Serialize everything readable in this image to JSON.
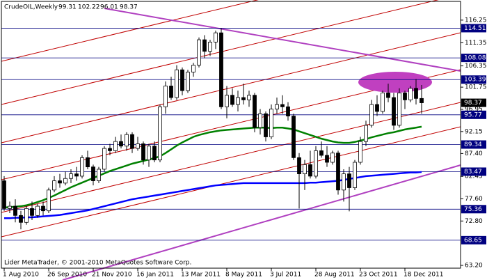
{
  "chart_data": {
    "type": "candlestick",
    "title": "CrudeOIL,Weekly",
    "footer": "Lider MetaTrader, © 2001-2010 MetaQuotes Software Corp.",
    "categories": [
      "1 Aug 2010",
      null,
      null,
      null,
      null,
      null,
      null,
      null,
      "26 Sep 2010",
      null,
      null,
      null,
      null,
      null,
      null,
      null,
      "21 Nov 2010",
      null,
      null,
      null,
      null,
      null,
      null,
      null,
      "16 Jan 2011",
      null,
      null,
      null,
      null,
      null,
      null,
      null,
      "13 Mar 2011",
      null,
      null,
      null,
      null,
      null,
      null,
      null,
      "8 May 2011",
      null,
      null,
      null,
      null,
      null,
      null,
      null,
      "3 Jul 2011",
      null,
      null,
      null,
      null,
      null,
      null,
      null,
      "28 Aug 2011",
      null,
      null,
      null,
      null,
      null,
      null,
      null,
      "23 Oct 2011",
      null,
      null,
      null,
      null,
      null,
      null,
      null,
      "18 Dec 2011",
      null,
      null,
      null
    ],
    "open": [
      81.5,
      75.5,
      76,
      74,
      72.5,
      75.5,
      74,
      76,
      75,
      79.5,
      81.5,
      81,
      82,
      83,
      82.5,
      86.5,
      84.5,
      81.5,
      84,
      88.5,
      88,
      90,
      89,
      91.5,
      88.5,
      89.5,
      86,
      89,
      86,
      97.5,
      102,
      99.5,
      105.5,
      101,
      105,
      106.5,
      112,
      109.5,
      111.5,
      113.5,
      97.5,
      100,
      98,
      99.5,
      99,
      100,
      93,
      96,
      91,
      97,
      98,
      97.5,
      95.5,
      86.5,
      83,
      85,
      82.5,
      88,
      87,
      85.5,
      87.5,
      79.5,
      83,
      80,
      85.5,
      90,
      93.5,
      98,
      96.5,
      100.5,
      99.5,
      93.5,
      100.5,
      99,
      101.5,
      99.31
    ],
    "high": [
      82.5,
      77,
      77.5,
      75,
      76,
      77,
      76.5,
      77,
      80,
      82.5,
      83,
      83.5,
      84,
      84.5,
      87,
      88,
      85,
      84.5,
      89,
      89.5,
      91,
      91.5,
      92,
      92,
      91,
      90,
      89.5,
      90,
      98,
      103,
      104,
      106.5,
      106,
      105.5,
      107,
      112.5,
      113,
      112,
      114,
      114.5,
      102,
      101.5,
      101,
      102.5,
      101,
      100.5,
      97,
      96.5,
      98,
      99.5,
      100,
      98.5,
      96,
      87.5,
      86,
      88,
      89,
      90,
      89,
      88,
      88,
      84,
      84.5,
      86,
      91,
      94.5,
      99,
      100,
      101,
      102.5,
      100.5,
      101.5,
      101,
      102,
      103.5,
      102.22
    ],
    "low": [
      75,
      74.5,
      72.5,
      71,
      72,
      73,
      73.5,
      74,
      74.5,
      79,
      80,
      80.5,
      81,
      81.5,
      82,
      84,
      80.5,
      81,
      83.5,
      87,
      87.5,
      88.5,
      88,
      87.5,
      88,
      85,
      84.5,
      85.5,
      85.5,
      96,
      99,
      99,
      100,
      100.5,
      104,
      106,
      108,
      108.5,
      110,
      97,
      95,
      97.5,
      96.5,
      98,
      97.5,
      92,
      91.5,
      90,
      90.5,
      96,
      96,
      94.5,
      86,
      75.5,
      79.5,
      82,
      82,
      86.5,
      84.5,
      85,
      78.5,
      77,
      74.9,
      79.5,
      85,
      89,
      93,
      95.5,
      96,
      98.5,
      92.5,
      93,
      97,
      98.5,
      98,
      96.01
    ],
    "close": [
      75.5,
      76,
      74,
      72.5,
      75.5,
      74,
      76,
      75,
      79.5,
      81.5,
      81,
      82,
      83,
      82.5,
      86.5,
      84.5,
      81.5,
      84,
      88.5,
      88,
      90,
      89,
      91.5,
      88.5,
      89.5,
      86,
      89,
      86,
      97.5,
      102,
      99.5,
      105.5,
      101,
      105,
      106.5,
      112,
      109.5,
      111.5,
      113.5,
      97.5,
      100,
      98,
      99.5,
      99,
      100,
      93,
      96,
      91,
      97,
      98,
      97.5,
      95.5,
      86.5,
      83,
      85,
      82.5,
      88,
      87,
      85.5,
      87.5,
      79.5,
      83,
      80,
      85.5,
      90,
      93.5,
      98,
      96.5,
      100.5,
      99.5,
      93.5,
      100.5,
      99,
      101.5,
      99.31,
      98.37
    ],
    "up_color": "#ffffff",
    "down_color": "#000000",
    "moving_averages": [
      {
        "color": "#008000",
        "values": [
          75.7,
          75.8,
          75.9,
          76.0,
          76.2,
          76.5,
          76.9,
          77.3,
          77.8,
          78.3,
          78.9,
          79.5,
          80.1,
          80.6,
          81.1,
          81.6,
          82.1,
          82.6,
          83.1,
          83.6,
          84.0,
          84.4,
          84.8,
          85.2,
          85.5,
          85.8,
          86.1,
          86.4,
          86.8,
          87.5,
          88.3,
          89.1,
          89.8,
          90.4,
          91.0,
          91.4,
          91.7,
          92.0,
          92.2,
          92.4,
          92.5,
          92.6,
          92.7,
          92.8,
          92.9,
          93.0,
          93.0,
          93.0,
          92.9,
          93.0,
          93.0,
          92.8,
          92.6,
          92.2,
          91.8,
          91.4,
          91.0,
          90.6,
          90.3,
          90.0,
          89.8,
          89.7,
          89.7,
          89.9,
          90.2,
          90.5,
          90.9,
          91.2,
          91.5,
          91.8,
          92.0,
          92.3,
          92.6,
          92.8,
          93.0,
          93.2
        ]
      },
      {
        "color": "#0000ff",
        "values": [
          73.4,
          73.4,
          73.5,
          73.5,
          73.6,
          73.6,
          73.7,
          73.8,
          73.9,
          74.0,
          74.1,
          74.3,
          74.5,
          74.7,
          74.9,
          75.1,
          75.4,
          75.7,
          76.0,
          76.3,
          76.6,
          76.9,
          77.2,
          77.5,
          77.7,
          77.9,
          78.1,
          78.3,
          78.5,
          78.7,
          78.9,
          79.1,
          79.3,
          79.5,
          79.7,
          79.9,
          80.1,
          80.3,
          80.5,
          80.6,
          80.7,
          80.8,
          80.9,
          81.0,
          81.0,
          81.0,
          81.0,
          81.0,
          81.0,
          81.0,
          81.0,
          81.0,
          81.0,
          81.0,
          81.0,
          81.1,
          81.1,
          81.2,
          81.3,
          81.4,
          81.5,
          81.7,
          81.9,
          82.1,
          82.3,
          82.5,
          82.6,
          82.7,
          82.8,
          82.9,
          83.0,
          83.1,
          83.2,
          83.3,
          83.3,
          83.4
        ]
      }
    ],
    "levels": [
      114.51,
      108.08,
      103.39,
      95.77,
      89.34,
      83.47,
      75.36,
      68.65
    ],
    "level_color": "#000080",
    "ylim": [
      62.6,
      120.3
    ],
    "yticks": [
      116.25,
      111.35,
      106.35,
      101.75,
      96.95,
      92.15,
      {
        "value": 87.4,
        "label": "87.40"
      },
      82.45,
      {
        "value": 77.6,
        "label": "77.60"
      },
      {
        "value": 72.8,
        "label": "72.80"
      },
      {
        "value": 63.2,
        "label": "63.20"
      }
    ]
  }
}
